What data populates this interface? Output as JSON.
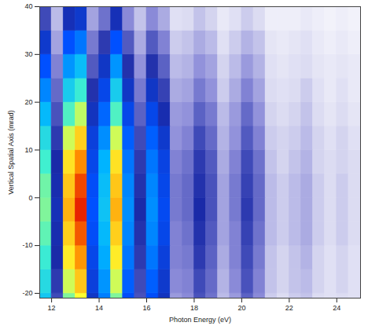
{
  "chart_data": {
    "type": "heatmap",
    "x_label": "Photon Energy (eV)",
    "y_label": "Vertical Spatial Axis (mrad)",
    "xlim": [
      11.5,
      25
    ],
    "ylim": [
      -21,
      40
    ],
    "xticks": [
      12,
      14,
      16,
      18,
      20,
      22,
      24
    ],
    "yticks": [
      -20,
      -10,
      0,
      10,
      20,
      30,
      40
    ],
    "zlim": [
      0,
      1
    ],
    "x_bins": [
      11.5,
      12,
      12.5,
      13,
      13.5,
      14,
      14.5,
      15,
      15.5,
      16,
      16.5,
      17,
      17.5,
      18,
      18.5,
      19,
      19.5,
      20,
      20.5,
      21,
      21.5,
      22,
      22.5,
      23,
      23.5,
      24,
      24.5,
      25
    ],
    "y_bins": [
      -25,
      -20,
      -15,
      -10,
      -5,
      0,
      5,
      10,
      15,
      20,
      25,
      30,
      35,
      40
    ],
    "values": [
      [
        0.59,
        0.26,
        0.72,
        0.8,
        0.34,
        0.48,
        0.72,
        0.41,
        0.25,
        0.41,
        0.33,
        0.16,
        0.18,
        0.25,
        0.21,
        0.12,
        0.16,
        0.23,
        0.18,
        0.1,
        0.08,
        0.1,
        0.11,
        0.08,
        0.07,
        0.08,
        0.07
      ],
      [
        0.63,
        0.28,
        0.77,
        0.86,
        0.37,
        0.51,
        0.77,
        0.44,
        0.26,
        0.44,
        0.35,
        0.18,
        0.19,
        0.26,
        0.22,
        0.13,
        0.18,
        0.25,
        0.19,
        0.11,
        0.09,
        0.11,
        0.12,
        0.09,
        0.07,
        0.09,
        0.07
      ],
      [
        0.67,
        0.3,
        0.82,
        0.91,
        0.39,
        0.54,
        0.82,
        0.47,
        0.28,
        0.47,
        0.37,
        0.19,
        0.2,
        0.28,
        0.23,
        0.14,
        0.19,
        0.26,
        0.2,
        0.11,
        0.09,
        0.11,
        0.13,
        0.09,
        0.07,
        0.09,
        0.07
      ],
      [
        0.7,
        0.31,
        0.85,
        0.95,
        0.41,
        0.56,
        0.85,
        0.49,
        0.29,
        0.49,
        0.39,
        0.19,
        0.21,
        0.29,
        0.24,
        0.15,
        0.19,
        0.27,
        0.21,
        0.12,
        0.1,
        0.12,
        0.14,
        0.1,
        0.08,
        0.1,
        0.08
      ],
      [
        0.72,
        0.32,
        0.88,
        0.98,
        0.42,
        0.58,
        0.88,
        0.5,
        0.3,
        0.5,
        0.4,
        0.2,
        0.22,
        0.3,
        0.25,
        0.15,
        0.2,
        0.28,
        0.22,
        0.12,
        0.1,
        0.12,
        0.14,
        0.1,
        0.08,
        0.1,
        0.08
      ],
      [
        0.71,
        0.31,
        0.86,
        0.96,
        0.41,
        0.57,
        0.86,
        0.49,
        0.29,
        0.49,
        0.39,
        0.2,
        0.22,
        0.29,
        0.25,
        0.15,
        0.2,
        0.27,
        0.22,
        0.12,
        0.1,
        0.12,
        0.14,
        0.1,
        0.08,
        0.1,
        0.08
      ],
      [
        0.68,
        0.3,
        0.83,
        0.92,
        0.39,
        0.55,
        0.83,
        0.47,
        0.28,
        0.47,
        0.38,
        0.19,
        0.21,
        0.28,
        0.24,
        0.14,
        0.19,
        0.26,
        0.21,
        0.11,
        0.09,
        0.11,
        0.13,
        0.09,
        0.08,
        0.09,
        0.08
      ],
      [
        0.63,
        0.28,
        0.77,
        0.85,
        0.37,
        0.5,
        0.77,
        0.44,
        0.26,
        0.44,
        0.35,
        0.17,
        0.19,
        0.26,
        0.22,
        0.13,
        0.17,
        0.24,
        0.19,
        0.1,
        0.09,
        0.1,
        0.12,
        0.09,
        0.07,
        0.09,
        0.07
      ],
      [
        0.56,
        0.25,
        0.69,
        0.76,
        0.33,
        0.45,
        0.69,
        0.39,
        0.23,
        0.39,
        0.31,
        0.16,
        0.17,
        0.23,
        0.2,
        0.12,
        0.16,
        0.22,
        0.17,
        0.09,
        0.08,
        0.09,
        0.11,
        0.08,
        0.06,
        0.08,
        0.06
      ],
      [
        0.49,
        0.22,
        0.6,
        0.67,
        0.29,
        0.39,
        0.6,
        0.34,
        0.2,
        0.34,
        0.27,
        0.14,
        0.15,
        0.2,
        0.17,
        0.1,
        0.14,
        0.19,
        0.15,
        0.08,
        0.07,
        0.08,
        0.1,
        0.07,
        0.05,
        0.07,
        0.05
      ],
      [
        0.42,
        0.19,
        0.51,
        0.57,
        0.24,
        0.34,
        0.51,
        0.29,
        0.17,
        0.29,
        0.23,
        0.12,
        0.13,
        0.17,
        0.15,
        0.09,
        0.12,
        0.16,
        0.13,
        0.07,
        0.06,
        0.07,
        0.08,
        0.06,
        0.05,
        0.06,
        0.05
      ],
      [
        0.35,
        0.15,
        0.42,
        0.47,
        0.2,
        0.28,
        0.42,
        0.24,
        0.14,
        0.24,
        0.19,
        0.1,
        0.11,
        0.14,
        0.12,
        0.07,
        0.1,
        0.13,
        0.11,
        0.06,
        0.05,
        0.06,
        0.07,
        0.05,
        0.04,
        0.05,
        0.04
      ],
      [
        0.26,
        0.12,
        0.32,
        0.35,
        0.15,
        0.21,
        0.32,
        0.18,
        0.11,
        0.18,
        0.14,
        0.07,
        0.08,
        0.11,
        0.09,
        0.05,
        0.07,
        0.1,
        0.08,
        0.04,
        0.04,
        0.04,
        0.05,
        0.04,
        0.03,
        0.04,
        0.03
      ]
    ]
  }
}
